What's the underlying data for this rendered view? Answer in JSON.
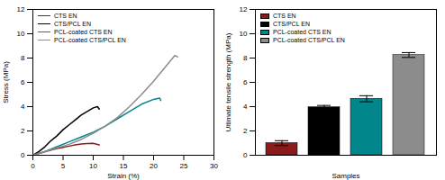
{
  "chart_data": [
    {
      "type": "line",
      "x_label": "Strain (%)",
      "y_label": "Stress (MPa)",
      "xlim": [
        0,
        30
      ],
      "xticks": [
        0,
        5,
        10,
        15,
        20,
        25,
        30
      ],
      "ylim": [
        0,
        12
      ],
      "yticks": [
        0,
        2,
        4,
        6,
        8,
        10,
        12
      ],
      "grid": false,
      "legend": "upper left",
      "series": [
        {
          "name": "CTS EN",
          "color": "#8b1a1a",
          "x": [
            0,
            1,
            2,
            3,
            4,
            5,
            6,
            7,
            8,
            9,
            10,
            11
          ],
          "values": [
            0,
            0.15,
            0.3,
            0.42,
            0.55,
            0.65,
            0.75,
            0.85,
            0.92,
            0.97,
            0.98,
            0.85
          ]
        },
        {
          "name": "CTS/PCL EN",
          "color": "#000000",
          "x": [
            0,
            1,
            2,
            3,
            4,
            5,
            6,
            7,
            8,
            9,
            10,
            10.7,
            11
          ],
          "values": [
            0,
            0.3,
            0.7,
            1.2,
            1.6,
            2.1,
            2.5,
            2.9,
            3.3,
            3.6,
            3.9,
            4.0,
            3.8
          ]
        },
        {
          "name": "PCL-coated CTS EN",
          "color": "#00868b",
          "x": [
            0,
            2,
            4,
            6,
            8,
            10,
            12,
            14,
            16,
            18,
            20,
            21,
            21.2
          ],
          "values": [
            0,
            0.3,
            0.7,
            1.1,
            1.5,
            1.9,
            2.4,
            3.0,
            3.6,
            4.2,
            4.6,
            4.7,
            4.5
          ]
        },
        {
          "name": "PCL-coated CTS/PCL EN",
          "color": "#8c8c8c",
          "x": [
            0,
            2,
            4,
            6,
            8,
            10,
            12,
            14,
            16,
            18,
            20,
            22,
            23.5,
            24
          ],
          "values": [
            0,
            0.3,
            0.6,
            0.9,
            1.3,
            1.8,
            2.4,
            3.1,
            4.0,
            5.0,
            6.1,
            7.3,
            8.2,
            8.1
          ]
        }
      ]
    },
    {
      "type": "bar",
      "x_label": "Samples",
      "y_label": "Ultimate tensile strength (MPa)",
      "categories": [
        "CTS EN",
        "CTS/PCL EN",
        "PCL-coated CTS EN",
        "PCL-coated CTS/PCL EN"
      ],
      "values": [
        1.0,
        3.95,
        4.65,
        8.25
      ],
      "errors": [
        0.2,
        0.15,
        0.25,
        0.2
      ],
      "colors": [
        "#8b1a1a",
        "#000000",
        "#00868b",
        "#8c8c8c"
      ],
      "ylim": [
        0,
        12
      ],
      "yticks": [
        0,
        2,
        4,
        6,
        8,
        10,
        12
      ],
      "grid": false,
      "legend": "upper left",
      "tick_labels": "y"
    }
  ]
}
